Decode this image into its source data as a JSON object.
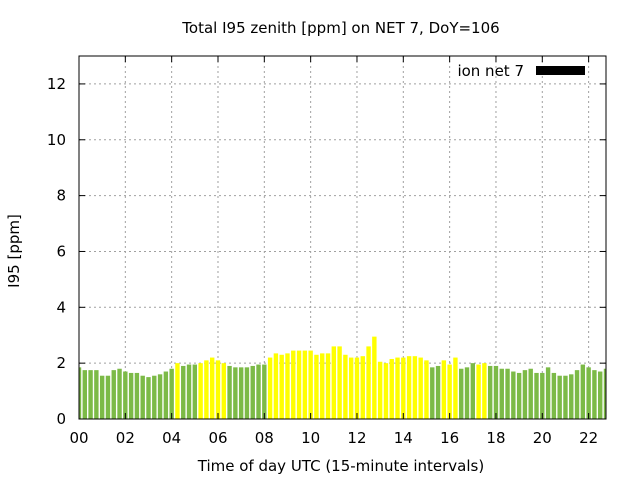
{
  "chart_data": {
    "type": "bar",
    "title": "Total I95 zenith [ppm] on NET 7, DoY=106",
    "xlabel": "Time of day UTC (15-minute intervals)",
    "ylabel": "I95 [ppm]",
    "ylim": [
      0,
      13
    ],
    "xlim": [
      0,
      22.75
    ],
    "y_ticks": [
      0,
      2,
      4,
      6,
      8,
      10,
      12
    ],
    "x_ticks": [
      0,
      2,
      4,
      6,
      8,
      10,
      12,
      14,
      16,
      18,
      20,
      22
    ],
    "x_tick_labels": [
      "00",
      "02",
      "04",
      "06",
      "08",
      "10",
      "12",
      "14",
      "16",
      "18",
      "20",
      "22"
    ],
    "grid": true,
    "legend": {
      "label": "ion net 7",
      "position": "top-right",
      "color": "#000000"
    },
    "colors": {
      "green": "#7cba47",
      "yellow": "#ffff00"
    },
    "bar_width_hours": 0.19,
    "series": [
      {
        "name": "I95 zenith",
        "x": [
          0,
          0.25,
          0.5,
          0.75,
          1,
          1.25,
          1.5,
          1.75,
          2,
          2.25,
          2.5,
          2.75,
          3,
          3.25,
          3.5,
          3.75,
          4,
          4.25,
          4.5,
          4.75,
          5,
          5.25,
          5.5,
          5.75,
          6,
          6.25,
          6.5,
          6.75,
          7,
          7.25,
          7.5,
          7.75,
          8,
          8.25,
          8.5,
          8.75,
          9,
          9.25,
          9.5,
          9.75,
          10,
          10.25,
          10.5,
          10.75,
          11,
          11.25,
          11.5,
          11.75,
          12,
          12.25,
          12.5,
          12.75,
          13,
          13.25,
          13.5,
          13.75,
          14,
          14.25,
          14.5,
          14.75,
          15,
          15.25,
          15.5,
          15.75,
          16,
          16.25,
          16.5,
          16.75,
          17,
          17.25,
          17.5,
          17.75,
          18,
          18.25,
          18.5,
          18.75,
          19,
          19.25,
          19.5,
          19.75,
          20,
          20.25,
          20.5,
          20.75,
          21,
          21.25,
          21.5,
          21.75,
          22,
          22.25,
          22.5,
          22.75
        ],
        "values": [
          1.85,
          1.75,
          1.75,
          1.75,
          1.55,
          1.55,
          1.75,
          1.8,
          1.7,
          1.65,
          1.65,
          1.55,
          1.5,
          1.55,
          1.6,
          1.7,
          1.8,
          2.0,
          1.9,
          1.95,
          1.95,
          2.0,
          2.1,
          2.2,
          2.1,
          2.0,
          1.9,
          1.85,
          1.85,
          1.85,
          1.9,
          1.95,
          1.95,
          2.2,
          2.35,
          2.3,
          2.35,
          2.45,
          2.45,
          2.45,
          2.45,
          2.3,
          2.35,
          2.35,
          2.6,
          2.6,
          2.3,
          2.2,
          2.2,
          2.25,
          2.6,
          2.95,
          2.05,
          2.0,
          2.15,
          2.2,
          2.2,
          2.25,
          2.25,
          2.2,
          2.1,
          1.85,
          1.9,
          2.1,
          1.95,
          2.2,
          1.8,
          1.85,
          2.0,
          1.95,
          2.0,
          1.9,
          1.9,
          1.8,
          1.8,
          1.7,
          1.65,
          1.75,
          1.8,
          1.65,
          1.65,
          1.85,
          1.65,
          1.55,
          1.55,
          1.6,
          1.75,
          1.95,
          1.85,
          1.75,
          1.7,
          1.8
        ],
        "color_class": [
          "green",
          "green",
          "green",
          "green",
          "green",
          "green",
          "green",
          "green",
          "green",
          "green",
          "green",
          "green",
          "green",
          "green",
          "green",
          "green",
          "green",
          "yellow",
          "green",
          "green",
          "green",
          "yellow",
          "yellow",
          "yellow",
          "yellow",
          "yellow",
          "green",
          "green",
          "green",
          "green",
          "green",
          "green",
          "green",
          "yellow",
          "yellow",
          "yellow",
          "yellow",
          "yellow",
          "yellow",
          "yellow",
          "yellow",
          "yellow",
          "yellow",
          "yellow",
          "yellow",
          "yellow",
          "yellow",
          "yellow",
          "yellow",
          "yellow",
          "yellow",
          "yellow",
          "yellow",
          "yellow",
          "yellow",
          "yellow",
          "yellow",
          "yellow",
          "yellow",
          "yellow",
          "yellow",
          "green",
          "green",
          "yellow",
          "yellow",
          "yellow",
          "green",
          "green",
          "green",
          "yellow",
          "yellow",
          "green",
          "green",
          "green",
          "green",
          "green",
          "green",
          "green",
          "green",
          "green",
          "green",
          "green",
          "green",
          "green",
          "green",
          "green",
          "green",
          "green",
          "green",
          "green",
          "green",
          "green"
        ]
      }
    ]
  }
}
